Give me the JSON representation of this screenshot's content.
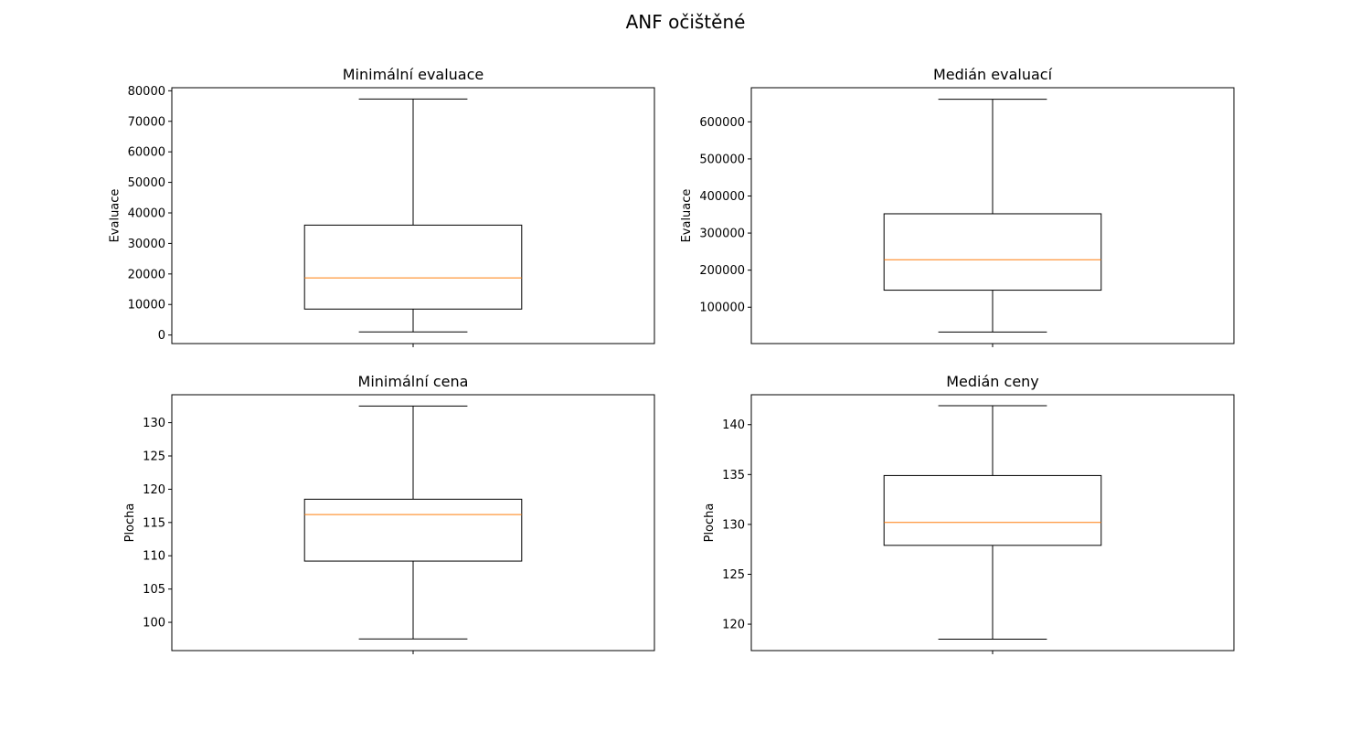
{
  "figure": {
    "title": "ANF očištěné"
  },
  "colors": {
    "box": "#000000",
    "median": "#ff7f0e",
    "background": "#ffffff"
  },
  "chart_data": [
    {
      "type": "box",
      "title": "Minimální evaluace",
      "ylabel": "Evaluace",
      "ylim": [
        -2800,
        81000
      ],
      "yticks": [
        0,
        10000,
        20000,
        30000,
        40000,
        50000,
        60000,
        70000,
        80000
      ],
      "box": {
        "whisker_low": 1000,
        "q1": 8500,
        "median": 18700,
        "q3": 36000,
        "whisker_high": 77300
      },
      "x_tick": ""
    },
    {
      "type": "box",
      "title": "Medián evaluací",
      "ylabel": "Evaluace",
      "ylim": [
        2000,
        692000
      ],
      "yticks": [
        100000,
        200000,
        300000,
        400000,
        500000,
        600000
      ],
      "box": {
        "whisker_low": 33000,
        "q1": 146000,
        "median": 228000,
        "q3": 352000,
        "whisker_high": 661000
      },
      "x_tick": ""
    },
    {
      "type": "box",
      "title": "Minimální cena",
      "ylabel": "Plocha",
      "ylim": [
        95.75,
        134.2
      ],
      "yticks": [
        100,
        105,
        110,
        115,
        120,
        125,
        130
      ],
      "box": {
        "whisker_low": 97.5,
        "q1": 109.2,
        "median": 116.2,
        "q3": 118.5,
        "whisker_high": 132.5
      },
      "x_tick": ""
    },
    {
      "type": "box",
      "title": "Medián ceny",
      "ylabel": "Plocha",
      "ylim": [
        117.35,
        143.0
      ],
      "yticks": [
        120,
        125,
        130,
        135,
        140
      ],
      "box": {
        "whisker_low": 118.5,
        "q1": 127.9,
        "median": 130.2,
        "q3": 134.9,
        "whisker_high": 141.9
      },
      "x_tick": ""
    }
  ]
}
